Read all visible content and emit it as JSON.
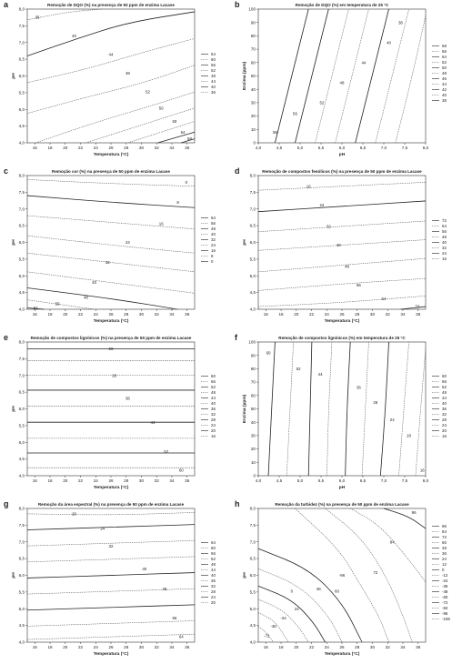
{
  "panels": [
    {
      "id": "a",
      "title": "Remoção de DQO (%) na presença de 50 ppm de enzima Lacase",
      "xlabel": "Temperatura (°C)",
      "ylabel": "pH",
      "xticks": [
        "16",
        "18",
        "20",
        "22",
        "24",
        "26",
        "28",
        "30",
        "32",
        "34",
        "36"
      ],
      "yticks": [
        "4,0",
        "4,5",
        "5,0",
        "5,5",
        "6,0",
        "6,5",
        "7,0",
        "7,5",
        "8,0"
      ],
      "legend": [
        "64",
        "60",
        "56",
        "52",
        "48",
        "44",
        "40",
        "36"
      ],
      "contour_labels": [
        "36",
        "40",
        "44",
        "48",
        "52",
        "56",
        "60",
        "64",
        "68"
      ]
    },
    {
      "id": "b",
      "title": "Remoção de DQO (%) em temperatura de 25 °C",
      "xlabel": "pH",
      "ylabel": "Enzima (ppm)",
      "xticks": [
        "4,0",
        "4,5",
        "5,0",
        "5,5",
        "6,0",
        "6,5",
        "7,0",
        "7,5",
        "8,0"
      ],
      "yticks": [
        "0",
        "10",
        "20",
        "30",
        "40",
        "50",
        "60",
        "70",
        "80",
        "90",
        "100"
      ],
      "legend": [
        "58",
        "56",
        "54",
        "52",
        "50",
        "48",
        "46",
        "44",
        "42",
        "40",
        "38"
      ],
      "contour_labels": [
        "38",
        "40",
        "44",
        "48",
        "52",
        "56",
        "58"
      ]
    },
    {
      "id": "c",
      "title": "Remoção cor (%) na presença de 50 ppm de enzima Lacase",
      "xlabel": "Temperatura (°C)",
      "ylabel": "pH",
      "xticks": [
        "16",
        "18",
        "20",
        "22",
        "24",
        "26",
        "28",
        "30",
        "32",
        "34",
        "36"
      ],
      "yticks": [
        "4,0",
        "4,5",
        "5,0",
        "5,5",
        "6,0",
        "6,5",
        "7,0",
        "7,5",
        "8,0"
      ],
      "legend": [
        "64",
        "56",
        "48",
        "40",
        "32",
        "24",
        "16",
        "8",
        "0"
      ],
      "contour_labels": [
        "0",
        "8",
        "16",
        "24",
        "32",
        "40",
        "48",
        "56",
        "64"
      ]
    },
    {
      "id": "d",
      "title": "Remoção de compostos fenólicos (%) na presença de 50 ppm de enzima Lacase",
      "xlabel": "Temperatura (°C)",
      "ylabel": "pH",
      "xticks": [
        "16",
        "18",
        "20",
        "22",
        "24",
        "26",
        "28",
        "30",
        "32",
        "34",
        "36"
      ],
      "yticks": [
        "4,0",
        "4,5",
        "5,0",
        "5,5",
        "6,0",
        "6,5",
        "7,0",
        "7,5",
        "8,0"
      ],
      "legend": [
        "72",
        "64",
        "56",
        "48",
        "40",
        "32",
        "24",
        "16"
      ],
      "contour_labels": [
        "16",
        "24",
        "32",
        "40",
        "48",
        "56",
        "64",
        "72"
      ]
    },
    {
      "id": "e",
      "title": "Remoção de compostos lignínicos (%) na presença de 50 ppm de enzima Lacase",
      "xlabel": "Temperatura (°C)",
      "ylabel": "pH",
      "xticks": [
        "16",
        "18",
        "20",
        "22",
        "24",
        "26",
        "28",
        "30",
        "32",
        "34",
        "36"
      ],
      "yticks": [
        "4,0",
        "4,5",
        "5,0",
        "5,5",
        "6,0",
        "6,5",
        "7,0",
        "7,5",
        "8,0"
      ],
      "legend": [
        "60",
        "56",
        "52",
        "48",
        "44",
        "40",
        "36",
        "32",
        "28",
        "24",
        "20",
        "16"
      ],
      "contour_labels": [
        "20",
        "28",
        "36",
        "44",
        "52",
        "60"
      ]
    },
    {
      "id": "f",
      "title": "Remoção de compostos lignínicos (%) em temperatura de 25 °C",
      "xlabel": "pH",
      "ylabel": "Enzima (ppm)",
      "xticks": [
        "4,0",
        "4,5",
        "5,0",
        "5,5",
        "6,0",
        "6,5",
        "7,0",
        "7,5",
        "8,0"
      ],
      "yticks": [
        "0",
        "10",
        "20",
        "30",
        "40",
        "50",
        "60",
        "70",
        "80",
        "90",
        "100"
      ],
      "legend": [
        "60",
        "56",
        "52",
        "48",
        "44",
        "40",
        "36",
        "32",
        "28",
        "24",
        "20",
        "16"
      ],
      "contour_labels": [
        "60",
        "52",
        "44",
        "36",
        "28",
        "24",
        "20",
        "16"
      ]
    },
    {
      "id": "g",
      "title": "Remoção da área espectral (%) na presença de 50 ppm de enzima Lacase",
      "xlabel": "Temperatura (°C)",
      "ylabel": "pH",
      "xticks": [
        "16",
        "18",
        "20",
        "22",
        "24",
        "26",
        "28",
        "30",
        "32",
        "34",
        "36"
      ],
      "yticks": [
        "4,0",
        "4,5",
        "5,0",
        "5,5",
        "6,0",
        "6,5",
        "7,0",
        "7,5",
        "8,0"
      ],
      "legend": [
        "64",
        "60",
        "56",
        "52",
        "48",
        "44",
        "40",
        "36",
        "32",
        "28",
        "24",
        "20"
      ],
      "contour_labels": [
        "20",
        "24",
        "32",
        "40",
        "48",
        "56",
        "64"
      ]
    },
    {
      "id": "h",
      "title": "Remoção da turbidez (%) na presença de 50 ppm de enzima Lacase",
      "xlabel": "Temperatura (°C)",
      "ylabel": "pH",
      "xticks": [
        "16",
        "18",
        "20",
        "22",
        "24",
        "26",
        "28",
        "30",
        "32",
        "34",
        "36"
      ],
      "yticks": [
        "4,0",
        "4,5",
        "5,0",
        "5,5",
        "6,0",
        "6,5",
        "7,0",
        "7,5",
        "8,0"
      ],
      "legend": [
        "96",
        "84",
        "72",
        "60",
        "48",
        "36",
        "24",
        "12",
        "0",
        "-12",
        "-24",
        "-36",
        "-48",
        "-60",
        "-72",
        "-84",
        "-96",
        "-108"
      ],
      "contour_labels": [
        "96",
        "84",
        "72",
        "60",
        "48",
        "24",
        "0",
        "-24",
        "-48",
        "-72",
        "-96"
      ]
    }
  ],
  "chart_data": [
    {
      "type": "contour",
      "title": "Remoção de DQO (%) na presença de 50 ppm de enzima Lacase",
      "xlabel": "Temperatura (°C)",
      "ylabel": "pH",
      "xlim": [
        15,
        37
      ],
      "ylim": [
        4,
        8
      ],
      "levels": [
        36,
        40,
        44,
        48,
        52,
        56,
        60,
        64,
        68
      ]
    },
    {
      "type": "contour",
      "title": "Remoção de DQO (%) em temperatura de 25 °C",
      "xlabel": "pH",
      "ylabel": "Enzima (ppm)",
      "xlim": [
        4,
        8
      ],
      "ylim": [
        0,
        100
      ],
      "levels": [
        38,
        40,
        42,
        44,
        46,
        48,
        50,
        52,
        54,
        56,
        58
      ]
    },
    {
      "type": "contour",
      "title": "Remoção cor (%) na presença de 50 ppm de enzima Lacase",
      "xlabel": "Temperatura (°C)",
      "ylabel": "pH",
      "xlim": [
        15,
        37
      ],
      "ylim": [
        4,
        8
      ],
      "levels": [
        0,
        8,
        16,
        24,
        32,
        40,
        48,
        56,
        64
      ]
    },
    {
      "type": "contour",
      "title": "Remoção de compostos fenólicos (%) na presença de 50 ppm de enzima Lacase",
      "xlabel": "Temperatura (°C)",
      "ylabel": "pH",
      "xlim": [
        15,
        37
      ],
      "ylim": [
        4,
        8
      ],
      "levels": [
        16,
        24,
        32,
        40,
        48,
        56,
        64,
        72
      ]
    },
    {
      "type": "contour",
      "title": "Remoção de compostos lignínicos (%) na presença de 50 ppm de enzima Lacase",
      "xlabel": "Temperatura (°C)",
      "ylabel": "pH",
      "xlim": [
        15,
        37
      ],
      "ylim": [
        4,
        8
      ],
      "levels": [
        16,
        20,
        24,
        28,
        32,
        36,
        40,
        44,
        48,
        52,
        56,
        60
      ]
    },
    {
      "type": "contour",
      "title": "Remoção de compostos lignínicos (%) em temperatura de 25 °C",
      "xlabel": "pH",
      "ylabel": "Enzima (ppm)",
      "xlim": [
        4,
        8
      ],
      "ylim": [
        0,
        100
      ],
      "levels": [
        16,
        20,
        24,
        28,
        32,
        36,
        40,
        44,
        48,
        52,
        56,
        60
      ]
    },
    {
      "type": "contour",
      "title": "Remoção da área espectral (%) na presença de 50 ppm de enzima Lacase",
      "xlabel": "Temperatura (°C)",
      "ylabel": "pH",
      "xlim": [
        15,
        37
      ],
      "ylim": [
        4,
        8
      ],
      "levels": [
        20,
        24,
        28,
        32,
        36,
        40,
        44,
        48,
        52,
        56,
        60,
        64
      ]
    },
    {
      "type": "contour",
      "title": "Remoção da turbidez (%) na presença de 50 ppm de enzima Lacase",
      "xlabel": "Temperatura (°C)",
      "ylabel": "pH",
      "xlim": [
        15,
        37
      ],
      "ylim": [
        4,
        8
      ],
      "levels": [
        -108,
        -96,
        -84,
        -72,
        -60,
        -48,
        -36,
        -24,
        -12,
        0,
        12,
        24,
        36,
        48,
        60,
        72,
        84,
        96
      ]
    }
  ]
}
